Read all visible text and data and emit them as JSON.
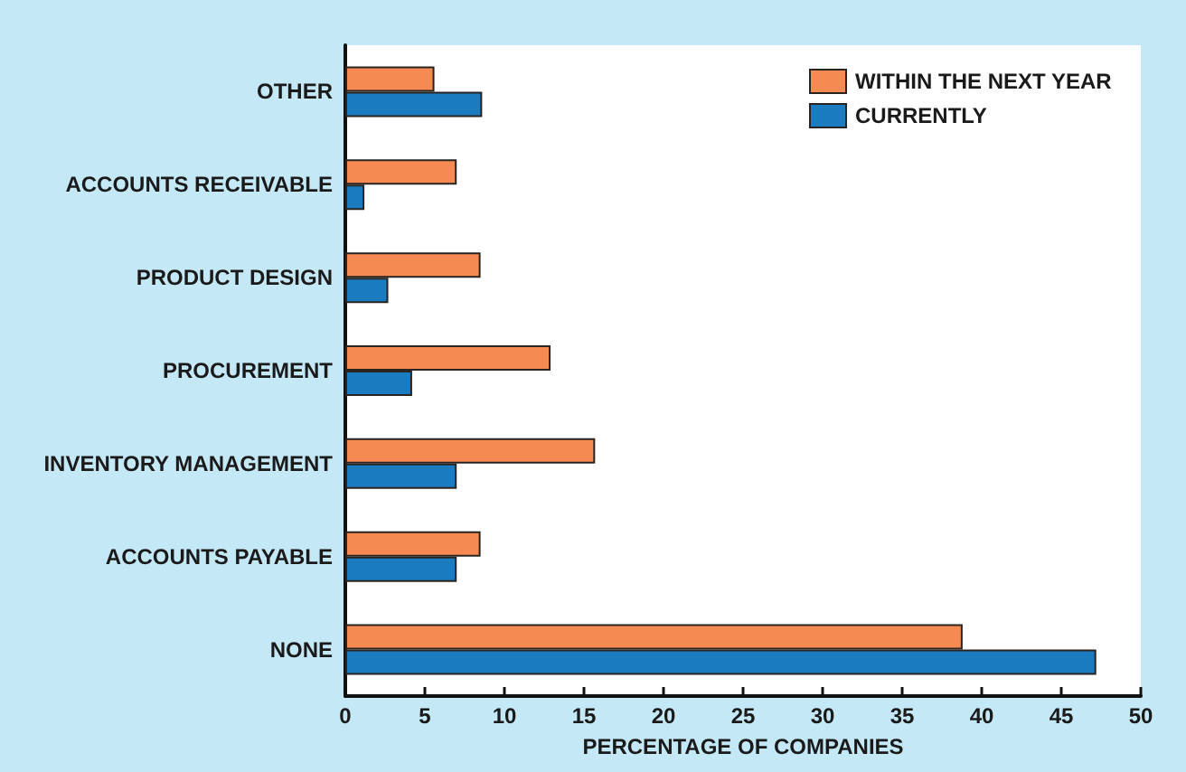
{
  "chart_data": {
    "type": "bar",
    "orientation": "horizontal",
    "xlabel": "PERCENTAGE OF COMPANIES",
    "categories": [
      "OTHER",
      "ACCOUNTS RECEIVABLE",
      "PRODUCT DESIGN",
      "PROCUREMENT",
      "INVENTORY MANAGEMENT",
      "ACCOUNTS PAYABLE",
      "NONE"
    ],
    "series": [
      {
        "name": "WITHIN THE NEXT YEAR",
        "color": "#f58b52",
        "values": [
          5.6,
          7.0,
          8.5,
          12.9,
          15.7,
          8.5,
          38.8
        ]
      },
      {
        "name": "CURRENTLY",
        "color": "#1a7bc0",
        "values": [
          8.6,
          1.2,
          2.7,
          4.2,
          7.0,
          7.0,
          47.2
        ]
      }
    ],
    "xlim": [
      0,
      50
    ],
    "xticks": [
      0,
      5,
      10,
      15,
      20,
      25,
      30,
      35,
      40,
      45,
      50
    ],
    "grid": false,
    "legend": "top right"
  }
}
